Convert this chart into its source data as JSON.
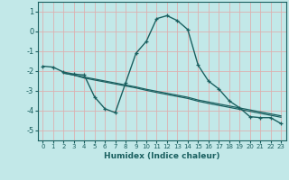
{
  "xlabel": "Humidex (Indice chaleur)",
  "background_color": "#c2e8e8",
  "grid_color": "#ddb0b0",
  "line_color": "#1a6060",
  "xlim": [
    -0.5,
    23.5
  ],
  "ylim": [
    -5.5,
    1.5
  ],
  "yticks": [
    1,
    0,
    -1,
    -2,
    -3,
    -4,
    -5
  ],
  "xticks": [
    0,
    1,
    2,
    3,
    4,
    5,
    6,
    7,
    8,
    9,
    10,
    11,
    12,
    13,
    14,
    15,
    16,
    17,
    18,
    19,
    20,
    21,
    22,
    23
  ],
  "series1_x": [
    0,
    1,
    2,
    3,
    4,
    5,
    6,
    7,
    8,
    9,
    10,
    11,
    12,
    13,
    14,
    15,
    16,
    17,
    18,
    19,
    20,
    21,
    22,
    23
  ],
  "series1_y": [
    -1.75,
    -1.8,
    -2.05,
    -2.15,
    -2.2,
    -3.3,
    -3.9,
    -4.1,
    -2.6,
    -1.1,
    -0.5,
    0.65,
    0.8,
    0.55,
    0.1,
    -1.7,
    -2.5,
    -2.9,
    -3.5,
    -3.85,
    -4.3,
    -4.35,
    -4.35,
    -4.65
  ],
  "series2_x": [
    2,
    3,
    4,
    5,
    6,
    7,
    8,
    9,
    10,
    11,
    12,
    13,
    14,
    15,
    16,
    17,
    18,
    19,
    20,
    21,
    22,
    23
  ],
  "series2_y": [
    -2.1,
    -2.2,
    -2.35,
    -2.45,
    -2.55,
    -2.65,
    -2.75,
    -2.85,
    -2.97,
    -3.08,
    -3.18,
    -3.28,
    -3.38,
    -3.52,
    -3.63,
    -3.73,
    -3.83,
    -3.93,
    -4.03,
    -4.13,
    -4.23,
    -4.33
  ],
  "series3_x": [
    2,
    3,
    4,
    5,
    6,
    7,
    8,
    9,
    10,
    11,
    12,
    13,
    14,
    15,
    16,
    17,
    18,
    19,
    20,
    21,
    22,
    23
  ],
  "series3_y": [
    -2.1,
    -2.2,
    -2.3,
    -2.4,
    -2.5,
    -2.6,
    -2.7,
    -2.8,
    -2.92,
    -3.02,
    -3.12,
    -3.22,
    -3.32,
    -3.46,
    -3.56,
    -3.66,
    -3.76,
    -3.86,
    -3.96,
    -4.06,
    -4.16,
    -4.26
  ]
}
